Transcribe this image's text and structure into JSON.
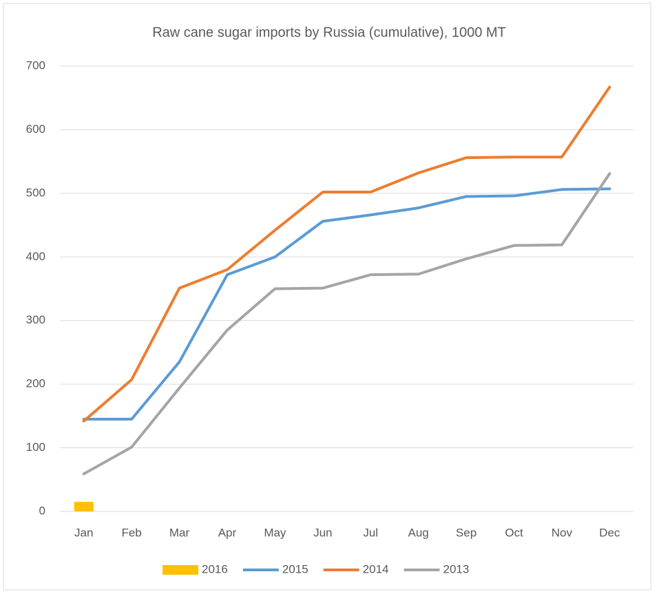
{
  "chart_data": {
    "type": "line",
    "title": "Raw cane sugar imports by Russia (cumulative), 1000 MT",
    "categories": [
      "Jan",
      "Feb",
      "Mar",
      "Apr",
      "May",
      "Jun",
      "Jul",
      "Aug",
      "Sep",
      "Oct",
      "Nov",
      "Dec"
    ],
    "series": [
      {
        "name": "2016",
        "type": "bar",
        "color": "#ffc000",
        "values": [
          15,
          null,
          null,
          null,
          null,
          null,
          null,
          null,
          null,
          null,
          null,
          null
        ]
      },
      {
        "name": "2015",
        "type": "line",
        "color": "#5b9bd5",
        "values": [
          145,
          145,
          235,
          372,
          400,
          456,
          466,
          477,
          495,
          496,
          506,
          507
        ]
      },
      {
        "name": "2014",
        "type": "line",
        "color": "#ed7d31",
        "values": [
          142,
          207,
          351,
          380,
          442,
          502,
          502,
          532,
          556,
          557,
          557,
          667
        ]
      },
      {
        "name": "2013",
        "type": "line",
        "color": "#a5a5a5",
        "values": [
          59,
          101,
          194,
          285,
          350,
          351,
          372,
          373,
          397,
          418,
          419,
          531
        ]
      }
    ],
    "ylim": [
      0,
      700
    ],
    "yticks": [
      0,
      100,
      200,
      300,
      400,
      500,
      600,
      700
    ],
    "grid": true,
    "legend": "bottom"
  }
}
